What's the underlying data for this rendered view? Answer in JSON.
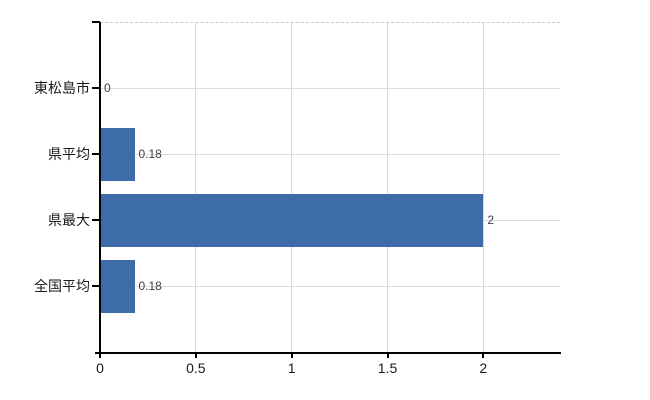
{
  "chart_data": {
    "type": "bar",
    "orientation": "horizontal",
    "title": "",
    "xlabel": "",
    "ylabel": "",
    "categories": [
      "東松島市",
      "県平均",
      "県最大",
      "全国平均"
    ],
    "values": [
      0,
      0.18,
      2,
      0.18
    ],
    "value_labels": [
      "0",
      "0.18",
      "2",
      "0.18"
    ],
    "xticks": [
      0,
      0.5,
      1,
      1.5,
      2
    ],
    "xtick_labels": [
      "0",
      "0.5",
      "1",
      "1.5",
      "2"
    ],
    "xlim": [
      0,
      2.4
    ],
    "grid": true,
    "legend": false,
    "colors": {
      "bar": "#3d6ca8",
      "gridline": "#d9d9d9",
      "top_border_dashed": "#c9c9c9",
      "axis": "#000000",
      "value_label_text": "#404040",
      "tick_label_text": "#1a1a1a",
      "background": "#ffffff"
    }
  }
}
